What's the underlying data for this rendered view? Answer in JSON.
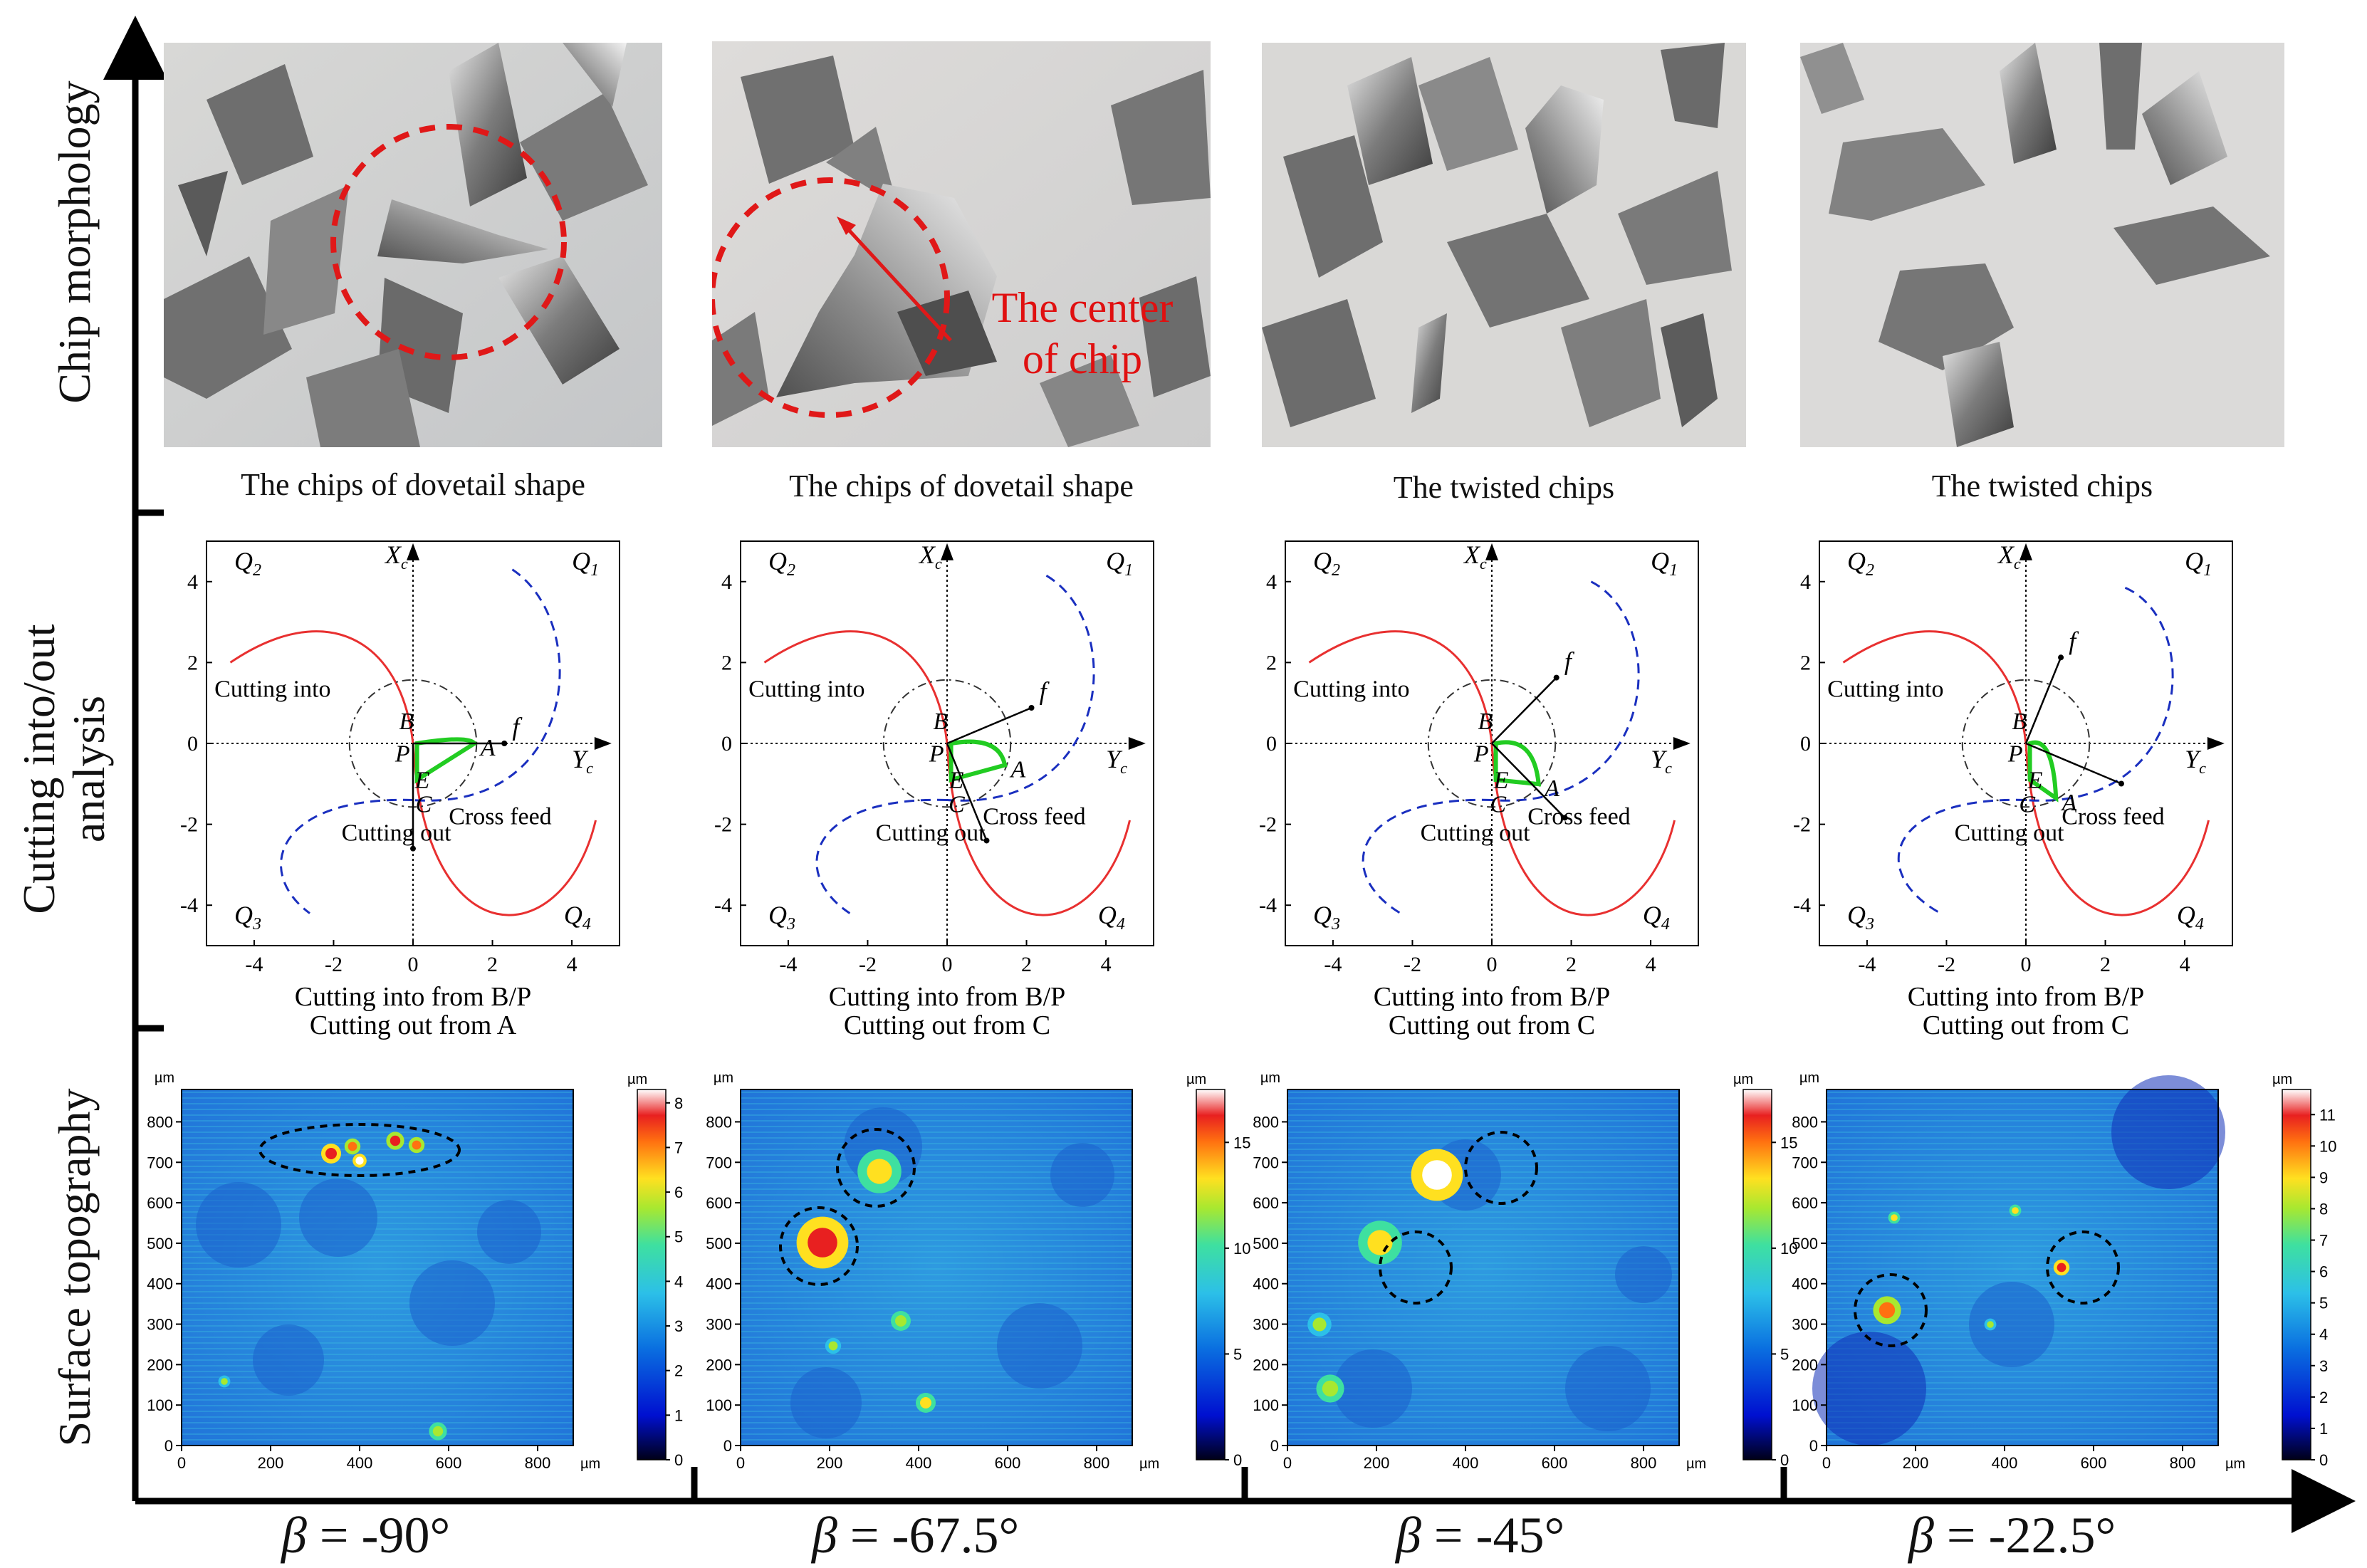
{
  "row_labels": {
    "chip": "Chip morphology",
    "cutting_line1": "Cutting into/out",
    "cutting_line2": "analysis",
    "surface": "Surface topography"
  },
  "beta_labels": [
    "-90°",
    "-67.5°",
    "-45°",
    "-22.5°"
  ],
  "beta_symbol": "β",
  "photo_captions": [
    "The chips of dovetail  shape",
    "The chips of dovetail  shape",
    "The twisted chips",
    "The twisted chips"
  ],
  "photo_annotation": {
    "line1": "The center",
    "line2": "of chip"
  },
  "analysis": {
    "x_ticks": [
      "-4",
      "-2",
      "0",
      "2",
      "4"
    ],
    "y_ticks": [
      "4",
      "2",
      "0",
      "-2",
      "-4"
    ],
    "quadrants": {
      "q1": "Q1",
      "q2": "Q2",
      "q3": "Q3",
      "q4": "Q4"
    },
    "axis_x": "Yc",
    "axis_y": "Xc",
    "points": {
      "A": "A",
      "B": "B",
      "C": "C",
      "E": "E",
      "P": "P"
    },
    "labels": {
      "cutting_into": "Cutting into",
      "cutting_out": "Cutting out",
      "cross_feed": "Cross feed",
      "f": "f"
    },
    "panels": [
      {
        "beta": -90,
        "xlabel": "Cutting into from B/P",
        "out_label": "Cutting out from A"
      },
      {
        "beta": -67.5,
        "xlabel": "Cutting into from B/P",
        "out_label": "Cutting out from C"
      },
      {
        "beta": -45,
        "xlabel": "Cutting into from B/P",
        "out_label": "Cutting out from C"
      },
      {
        "beta": -22.5,
        "xlabel": "Cutting into from B/P",
        "out_label": "Cutting out from C"
      }
    ]
  },
  "topography": {
    "unit": "µm",
    "axis_ticks": [
      "0",
      "200",
      "400",
      "600",
      "800"
    ],
    "y_ticks": [
      "800",
      "700",
      "600",
      "500",
      "400",
      "300",
      "200",
      "100",
      "0"
    ],
    "colorbars": [
      {
        "ticks": [
          "8",
          "7",
          "6",
          "5",
          "4",
          "3",
          "2",
          "1",
          "0"
        ]
      },
      {
        "ticks": [
          "15",
          "10",
          "5",
          "0"
        ]
      },
      {
        "ticks": [
          "15",
          "10",
          "5",
          "0"
        ]
      },
      {
        "ticks": [
          "11",
          "10",
          "9",
          "8",
          "7",
          "6",
          "5",
          "4",
          "3",
          "2",
          "1",
          "0"
        ]
      }
    ]
  },
  "colors": {
    "red_curve": "#e83030",
    "blue_curve": "#1a2fbf",
    "green_path": "#22cc22",
    "annotation_red": "#e01010"
  }
}
